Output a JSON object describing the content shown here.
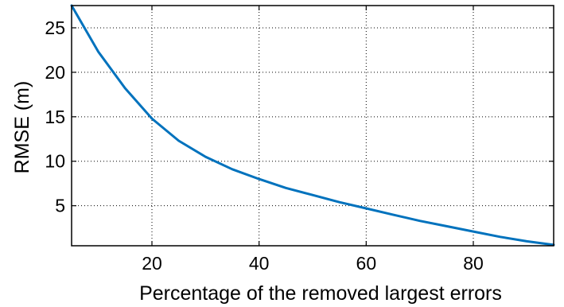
{
  "chart_data": {
    "type": "line",
    "title": "",
    "xlabel": "Percentage of the removed largest errors",
    "ylabel": "RMSE (m)",
    "xlim": [
      5,
      95
    ],
    "ylim": [
      0.5,
      27.5
    ],
    "xticks": [
      20,
      40,
      60,
      80
    ],
    "yticks": [
      5,
      10,
      15,
      20,
      25
    ],
    "xtick_labels": [
      "20",
      "40",
      "60",
      "80"
    ],
    "ytick_labels": [
      "5",
      "10",
      "15",
      "20",
      "25"
    ],
    "grid": true,
    "legend": "none",
    "series": [
      {
        "color": "#0072BD",
        "x": [
          5,
          10,
          15,
          20,
          25,
          30,
          35,
          40,
          45,
          50,
          55,
          60,
          65,
          70,
          75,
          80,
          85,
          90,
          95
        ],
        "y": [
          27.5,
          22.3,
          18.2,
          14.8,
          12.3,
          10.5,
          9.1,
          8.0,
          7.0,
          6.2,
          5.4,
          4.7,
          4.0,
          3.3,
          2.7,
          2.1,
          1.5,
          1.0,
          0.6
        ]
      }
    ]
  }
}
